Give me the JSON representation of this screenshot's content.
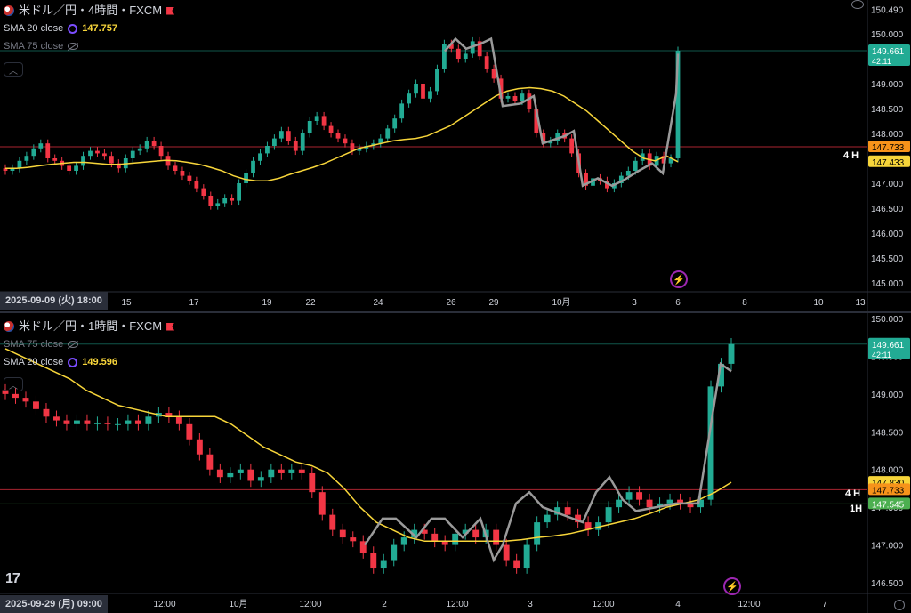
{
  "colors": {
    "up": "#22ab94",
    "down": "#f23645",
    "sma20": "#f7d53a",
    "sma75": "#787b86",
    "path": "#9a9a9a"
  },
  "top": {
    "title": "米ドル／円・4時間・FXCM",
    "sma20_label": "SMA 20 close",
    "sma20_value": "147.757",
    "sma75_label": "SMA 75 close",
    "price_labels": [
      "150.490",
      "150.000",
      "149.500",
      "149.000",
      "148.500",
      "148.000",
      "147.000",
      "146.500",
      "146.000",
      "145.500",
      "145.000"
    ],
    "badge_price": "149.661",
    "badge_time": "42:11",
    "badge_line1": "147.733",
    "badge_line2": "147.433",
    "timeframe_label": "4 H",
    "date_badge": "2025-09-09 (火)   18:00",
    "x_ticks": [
      "15",
      "17",
      "19",
      "22",
      "24",
      "26",
      "29",
      "10月",
      "3",
      "6",
      "8",
      "10",
      "13"
    ]
  },
  "bottom": {
    "title": "米ドル／円・1時間・FXCM",
    "sma75_label": "SMA 75 close",
    "sma20_label": "SMA 20 close",
    "sma20_value": "149.596",
    "price_labels": [
      "150.000",
      "149.500",
      "149.000",
      "148.500",
      "148.000",
      "147.500",
      "147.000",
      "146.500"
    ],
    "badge_price": "149.661",
    "badge_time": "42:11",
    "badge_1": "147.830",
    "badge_2": "147.733",
    "badge_3": "147.545",
    "tf_4h": "4 H",
    "tf_1h": "1H",
    "date_badge": "2025-09-29 (月)   09:00",
    "x_ticks": [
      "12:00",
      "10月",
      "12:00",
      "2",
      "12:00",
      "3",
      "12:00",
      "4",
      "12:00",
      "7"
    ],
    "logo": "17"
  },
  "chart_data": [
    {
      "type": "candlestick",
      "title": "米ドル／円・4時間・FXCM",
      "ylim": [
        145.0,
        150.5
      ],
      "series": [
        {
          "name": "SMA 20 close"
        },
        {
          "name": "SMA 75 close"
        }
      ],
      "closes": [
        147.25,
        147.3,
        147.45,
        147.55,
        147.7,
        147.8,
        147.5,
        147.45,
        147.35,
        147.25,
        147.35,
        147.55,
        147.65,
        147.6,
        147.55,
        147.4,
        147.3,
        147.5,
        147.65,
        147.7,
        147.85,
        147.75,
        147.55,
        147.35,
        147.25,
        147.15,
        147.05,
        146.9,
        146.75,
        146.55,
        146.6,
        146.7,
        146.65,
        147.0,
        147.2,
        147.45,
        147.6,
        147.75,
        147.9,
        148.05,
        147.85,
        147.65,
        148.0,
        148.25,
        148.35,
        148.15,
        148.0,
        147.9,
        147.8,
        147.65,
        147.7,
        147.75,
        147.8,
        147.9,
        148.1,
        148.3,
        148.6,
        148.8,
        149.0,
        148.7,
        148.85,
        149.3,
        149.8,
        149.7,
        149.5,
        149.6,
        149.85,
        149.55,
        149.3,
        149.1,
        148.7,
        148.75,
        148.65,
        148.8,
        148.5,
        148.0,
        147.8,
        147.85,
        148.0,
        147.9,
        147.6,
        147.2,
        146.95,
        147.1,
        147.05,
        146.9,
        147.0,
        147.15,
        147.25,
        147.45,
        147.6,
        147.35,
        147.55,
        147.4,
        147.5,
        149.661
      ],
      "sma20": [
        147.3,
        147.3,
        147.32,
        147.35,
        147.38,
        147.4,
        147.42,
        147.42,
        147.4,
        147.38,
        147.38,
        147.4,
        147.42,
        147.44,
        147.46,
        147.45,
        147.42,
        147.38,
        147.32,
        147.25,
        147.15,
        147.08,
        147.05,
        147.05,
        147.1,
        147.18,
        147.25,
        147.32,
        147.4,
        147.5,
        147.6,
        147.7,
        147.75,
        147.8,
        147.85,
        147.88,
        147.9,
        147.95,
        148.05,
        148.15,
        148.3,
        148.45,
        148.6,
        148.75,
        148.85,
        148.9,
        148.92,
        148.9,
        148.85,
        148.75,
        148.6,
        148.45,
        148.25,
        148.05,
        147.85,
        147.65,
        147.5,
        147.45,
        147.55,
        147.433
      ],
      "markers": [
        "2025-09-09 18:00"
      ]
    },
    {
      "type": "candlestick",
      "title": "米ドル／円・1時間・FXCM",
      "ylim": [
        146.5,
        150.0
      ],
      "series": [
        {
          "name": "SMA 20 close"
        },
        {
          "name": "SMA 75 close"
        }
      ],
      "closes": [
        149.0,
        148.95,
        148.9,
        148.8,
        148.7,
        148.65,
        148.6,
        148.65,
        148.6,
        148.62,
        148.6,
        148.6,
        148.65,
        148.6,
        148.7,
        148.75,
        148.7,
        148.6,
        148.4,
        148.2,
        148.0,
        147.9,
        147.95,
        148.0,
        147.85,
        147.9,
        148.0,
        147.95,
        148.0,
        147.95,
        147.7,
        147.4,
        147.2,
        147.1,
        147.05,
        146.9,
        146.7,
        146.8,
        147.0,
        147.1,
        147.2,
        147.15,
        147.05,
        147.0,
        147.15,
        147.2,
        147.1,
        147.2,
        147.0,
        146.8,
        146.7,
        147.0,
        147.3,
        147.4,
        147.5,
        147.4,
        147.3,
        147.2,
        147.3,
        147.5,
        147.6,
        147.7,
        147.6,
        147.5,
        147.55,
        147.6,
        147.55,
        147.5,
        147.6,
        149.1,
        149.4,
        149.661
      ],
      "sma20": [
        149.6,
        149.5,
        149.4,
        149.3,
        149.2,
        149.05,
        148.95,
        148.85,
        148.8,
        148.75,
        148.7,
        148.7,
        148.7,
        148.7,
        148.6,
        148.45,
        148.3,
        148.2,
        148.1,
        148.05,
        147.95,
        147.75,
        147.5,
        147.3,
        147.2,
        147.1,
        147.05,
        147.05,
        147.05,
        147.05,
        147.05,
        147.05,
        147.07,
        147.1,
        147.12,
        147.15,
        147.2,
        147.25,
        147.3,
        147.35,
        147.42,
        147.5,
        147.55,
        147.6,
        147.7,
        147.83
      ],
      "markers": [
        "2025-09-29 09:00"
      ]
    }
  ]
}
